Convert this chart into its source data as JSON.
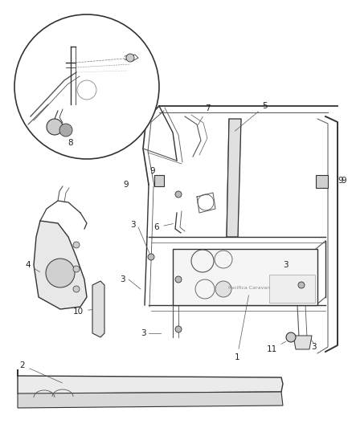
{
  "bg_color": "#ffffff",
  "line_color": "#555555",
  "dark_line": "#333333",
  "label_color": "#222222",
  "fill_light": "#f0f0f0",
  "fill_mid": "#d8d8d8",
  "figsize": [
    4.39,
    5.33
  ],
  "dpi": 100
}
